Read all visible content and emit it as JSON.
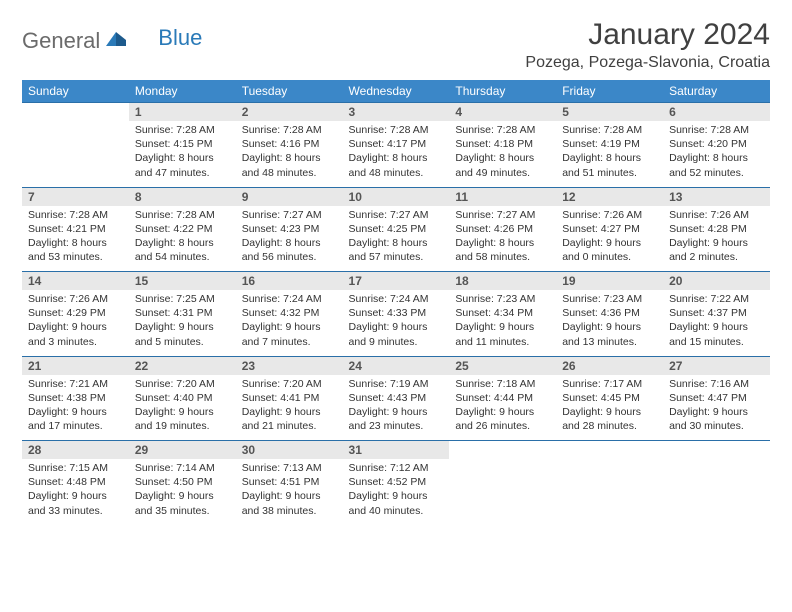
{
  "logo": {
    "general": "General",
    "blue": "Blue"
  },
  "header": {
    "title": "January 2024",
    "location": "Pozega, Pozega-Slavonia, Croatia"
  },
  "colors": {
    "header_bg": "#3b87c8",
    "daynum_bg": "#e8e8e8",
    "border": "#2a6fa8",
    "text": "#333333"
  },
  "day_headers": [
    "Sunday",
    "Monday",
    "Tuesday",
    "Wednesday",
    "Thursday",
    "Friday",
    "Saturday"
  ],
  "weeks": [
    {
      "nums": [
        "",
        "1",
        "2",
        "3",
        "4",
        "5",
        "6"
      ],
      "cells": [
        null,
        {
          "sunrise": "Sunrise: 7:28 AM",
          "sunset": "Sunset: 4:15 PM",
          "day1": "Daylight: 8 hours",
          "day2": "and 47 minutes."
        },
        {
          "sunrise": "Sunrise: 7:28 AM",
          "sunset": "Sunset: 4:16 PM",
          "day1": "Daylight: 8 hours",
          "day2": "and 48 minutes."
        },
        {
          "sunrise": "Sunrise: 7:28 AM",
          "sunset": "Sunset: 4:17 PM",
          "day1": "Daylight: 8 hours",
          "day2": "and 48 minutes."
        },
        {
          "sunrise": "Sunrise: 7:28 AM",
          "sunset": "Sunset: 4:18 PM",
          "day1": "Daylight: 8 hours",
          "day2": "and 49 minutes."
        },
        {
          "sunrise": "Sunrise: 7:28 AM",
          "sunset": "Sunset: 4:19 PM",
          "day1": "Daylight: 8 hours",
          "day2": "and 51 minutes."
        },
        {
          "sunrise": "Sunrise: 7:28 AM",
          "sunset": "Sunset: 4:20 PM",
          "day1": "Daylight: 8 hours",
          "day2": "and 52 minutes."
        }
      ]
    },
    {
      "nums": [
        "7",
        "8",
        "9",
        "10",
        "11",
        "12",
        "13"
      ],
      "cells": [
        {
          "sunrise": "Sunrise: 7:28 AM",
          "sunset": "Sunset: 4:21 PM",
          "day1": "Daylight: 8 hours",
          "day2": "and 53 minutes."
        },
        {
          "sunrise": "Sunrise: 7:28 AM",
          "sunset": "Sunset: 4:22 PM",
          "day1": "Daylight: 8 hours",
          "day2": "and 54 minutes."
        },
        {
          "sunrise": "Sunrise: 7:27 AM",
          "sunset": "Sunset: 4:23 PM",
          "day1": "Daylight: 8 hours",
          "day2": "and 56 minutes."
        },
        {
          "sunrise": "Sunrise: 7:27 AM",
          "sunset": "Sunset: 4:25 PM",
          "day1": "Daylight: 8 hours",
          "day2": "and 57 minutes."
        },
        {
          "sunrise": "Sunrise: 7:27 AM",
          "sunset": "Sunset: 4:26 PM",
          "day1": "Daylight: 8 hours",
          "day2": "and 58 minutes."
        },
        {
          "sunrise": "Sunrise: 7:26 AM",
          "sunset": "Sunset: 4:27 PM",
          "day1": "Daylight: 9 hours",
          "day2": "and 0 minutes."
        },
        {
          "sunrise": "Sunrise: 7:26 AM",
          "sunset": "Sunset: 4:28 PM",
          "day1": "Daylight: 9 hours",
          "day2": "and 2 minutes."
        }
      ]
    },
    {
      "nums": [
        "14",
        "15",
        "16",
        "17",
        "18",
        "19",
        "20"
      ],
      "cells": [
        {
          "sunrise": "Sunrise: 7:26 AM",
          "sunset": "Sunset: 4:29 PM",
          "day1": "Daylight: 9 hours",
          "day2": "and 3 minutes."
        },
        {
          "sunrise": "Sunrise: 7:25 AM",
          "sunset": "Sunset: 4:31 PM",
          "day1": "Daylight: 9 hours",
          "day2": "and 5 minutes."
        },
        {
          "sunrise": "Sunrise: 7:24 AM",
          "sunset": "Sunset: 4:32 PM",
          "day1": "Daylight: 9 hours",
          "day2": "and 7 minutes."
        },
        {
          "sunrise": "Sunrise: 7:24 AM",
          "sunset": "Sunset: 4:33 PM",
          "day1": "Daylight: 9 hours",
          "day2": "and 9 minutes."
        },
        {
          "sunrise": "Sunrise: 7:23 AM",
          "sunset": "Sunset: 4:34 PM",
          "day1": "Daylight: 9 hours",
          "day2": "and 11 minutes."
        },
        {
          "sunrise": "Sunrise: 7:23 AM",
          "sunset": "Sunset: 4:36 PM",
          "day1": "Daylight: 9 hours",
          "day2": "and 13 minutes."
        },
        {
          "sunrise": "Sunrise: 7:22 AM",
          "sunset": "Sunset: 4:37 PM",
          "day1": "Daylight: 9 hours",
          "day2": "and 15 minutes."
        }
      ]
    },
    {
      "nums": [
        "21",
        "22",
        "23",
        "24",
        "25",
        "26",
        "27"
      ],
      "cells": [
        {
          "sunrise": "Sunrise: 7:21 AM",
          "sunset": "Sunset: 4:38 PM",
          "day1": "Daylight: 9 hours",
          "day2": "and 17 minutes."
        },
        {
          "sunrise": "Sunrise: 7:20 AM",
          "sunset": "Sunset: 4:40 PM",
          "day1": "Daylight: 9 hours",
          "day2": "and 19 minutes."
        },
        {
          "sunrise": "Sunrise: 7:20 AM",
          "sunset": "Sunset: 4:41 PM",
          "day1": "Daylight: 9 hours",
          "day2": "and 21 minutes."
        },
        {
          "sunrise": "Sunrise: 7:19 AM",
          "sunset": "Sunset: 4:43 PM",
          "day1": "Daylight: 9 hours",
          "day2": "and 23 minutes."
        },
        {
          "sunrise": "Sunrise: 7:18 AM",
          "sunset": "Sunset: 4:44 PM",
          "day1": "Daylight: 9 hours",
          "day2": "and 26 minutes."
        },
        {
          "sunrise": "Sunrise: 7:17 AM",
          "sunset": "Sunset: 4:45 PM",
          "day1": "Daylight: 9 hours",
          "day2": "and 28 minutes."
        },
        {
          "sunrise": "Sunrise: 7:16 AM",
          "sunset": "Sunset: 4:47 PM",
          "day1": "Daylight: 9 hours",
          "day2": "and 30 minutes."
        }
      ]
    },
    {
      "nums": [
        "28",
        "29",
        "30",
        "31",
        "",
        "",
        ""
      ],
      "cells": [
        {
          "sunrise": "Sunrise: 7:15 AM",
          "sunset": "Sunset: 4:48 PM",
          "day1": "Daylight: 9 hours",
          "day2": "and 33 minutes."
        },
        {
          "sunrise": "Sunrise: 7:14 AM",
          "sunset": "Sunset: 4:50 PM",
          "day1": "Daylight: 9 hours",
          "day2": "and 35 minutes."
        },
        {
          "sunrise": "Sunrise: 7:13 AM",
          "sunset": "Sunset: 4:51 PM",
          "day1": "Daylight: 9 hours",
          "day2": "and 38 minutes."
        },
        {
          "sunrise": "Sunrise: 7:12 AM",
          "sunset": "Sunset: 4:52 PM",
          "day1": "Daylight: 9 hours",
          "day2": "and 40 minutes."
        },
        null,
        null,
        null
      ]
    }
  ]
}
